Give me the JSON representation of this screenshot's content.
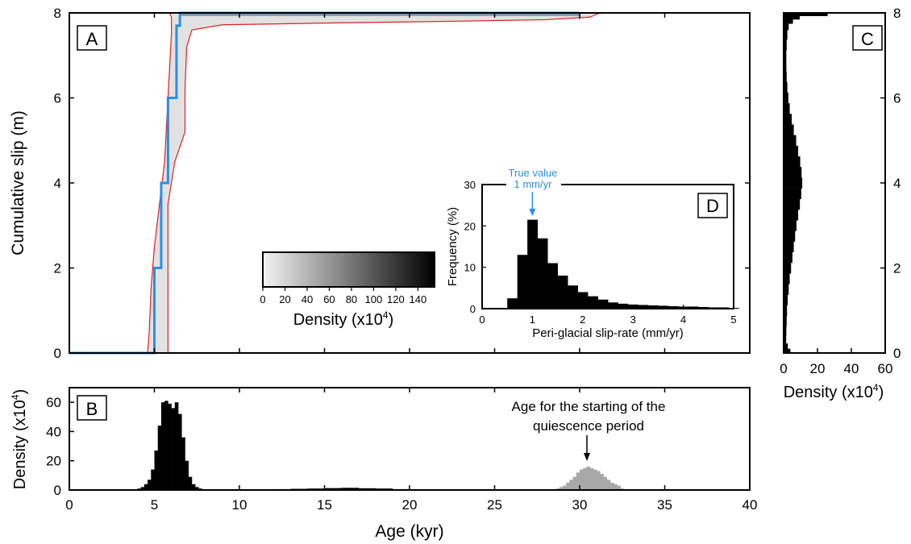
{
  "panels": {
    "A": {
      "letter": "A",
      "ylabel": "Cumulative slip (m)",
      "yticks": [
        "0",
        "2",
        "4",
        "6",
        "8"
      ],
      "colorbar": {
        "label": "Density (x10",
        "label_exp": "4",
        "label_close": ")",
        "ticks": [
          "0",
          "20",
          "40",
          "60",
          "80",
          "100",
          "120",
          "140"
        ],
        "range": [
          0,
          155
        ],
        "colors": [
          "#f4f4f4",
          "#000000"
        ]
      }
    },
    "B": {
      "letter": "B",
      "ylabel": "Density (x10",
      "ylabel_exp": "4",
      "ylabel_close": ")",
      "yticks": [
        "0",
        "20",
        "40",
        "60"
      ],
      "xlabel": "Age (kyr)",
      "xticks": [
        "0",
        "5",
        "10",
        "15",
        "20",
        "25",
        "30",
        "35",
        "40"
      ],
      "annotation_line1": "Age for the starting of the",
      "annotation_line2": "quiescence period"
    },
    "C": {
      "letter": "C",
      "yticks": [
        "0",
        "2",
        "4",
        "6",
        "8"
      ],
      "xticks": [
        "0",
        "20",
        "40",
        "60"
      ],
      "xlabel": "Density (x10",
      "xlabel_exp": "4",
      "xlabel_close": ")"
    },
    "D": {
      "letter": "D",
      "xlabel": "Peri-glacial slip-rate (mm/yr)",
      "ylabel": "Frequency (%)",
      "xticks": [
        "0",
        "1",
        "2",
        "3",
        "4",
        "5"
      ],
      "yticks": [
        "0",
        "10",
        "20",
        "30"
      ],
      "true_value_line1": "True value",
      "true_value_line2": "1 mm/yr"
    }
  },
  "colors": {
    "true_path": "#2b8fe6",
    "envelope": "#e02020",
    "bars": "#000000",
    "quiescence_bars": "#a8a8a8",
    "true_value_text": "#2b8fe6"
  },
  "chart_data": [
    {
      "panel": "A",
      "type": "line",
      "xlabel": "Age (kyr)",
      "ylabel": "Cumulative slip (m)",
      "xlim": [
        0,
        40
      ],
      "ylim": [
        0,
        8
      ],
      "series": [
        {
          "style": "step",
          "x": [
            0,
            5.0,
            5.0,
            5.4,
            5.4,
            5.8,
            5.8,
            6.3,
            6.3,
            6.5,
            6.5,
            30
          ],
          "y": [
            0,
            0,
            2,
            2,
            4,
            4,
            6,
            6,
            7.7,
            7.7,
            8,
            8
          ]
        },
        {
          "style": "envelope-left",
          "x": [
            4.6,
            4.7,
            4.8,
            5.0,
            5.3,
            5.6,
            5.8,
            6.0,
            6.0,
            5.9
          ],
          "y": [
            0,
            0.5,
            1.5,
            2.5,
            3.5,
            4.5,
            6.0,
            7.5,
            7.9,
            8.0
          ]
        },
        {
          "style": "envelope-right",
          "x": [
            5.8,
            5.8,
            5.8,
            6.2,
            6.8,
            6.8,
            6.9,
            7.2,
            9,
            15,
            22,
            28,
            30.6,
            31.2,
            30.6
          ],
          "y": [
            0,
            2.5,
            3.5,
            4.5,
            5.2,
            6.2,
            7.2,
            7.6,
            7.72,
            7.76,
            7.8,
            7.84,
            7.9,
            8.0,
            8.0
          ]
        }
      ]
    },
    {
      "panel": "B",
      "type": "bar",
      "xlabel": "Age (kyr)",
      "ylabel": "Density (x10^4)",
      "xlim": [
        0,
        40
      ],
      "ylim": [
        0,
        70
      ],
      "series": [
        {
          "x": [
            3.8,
            4.0,
            4.2,
            4.4,
            4.6,
            4.8,
            5.0,
            5.2,
            5.4,
            5.6,
            5.8,
            6.0,
            6.2,
            6.4,
            6.6,
            6.8,
            7.0,
            7.2,
            7.4,
            7.6,
            7.8
          ],
          "values": [
            0.5,
            1,
            2,
            4,
            7,
            14,
            27,
            44,
            60,
            61,
            59,
            56,
            60,
            52,
            36,
            20,
            9,
            4,
            2,
            1,
            0.5
          ]
        },
        {
          "x": [
            8,
            9,
            10,
            11,
            12,
            13,
            14,
            15,
            16,
            17,
            18,
            19,
            20
          ],
          "values": [
            0.4,
            0.4,
            0.5,
            0.5,
            0.6,
            0.8,
            1,
            1.3,
            1.5,
            1.2,
            1,
            0.6,
            0.3
          ]
        },
        {
          "name": "quiescence",
          "x": [
            28.6,
            28.8,
            29.0,
            29.2,
            29.4,
            29.6,
            29.8,
            30.0,
            30.2,
            30.4,
            30.6,
            30.8,
            31.0,
            31.2,
            31.4,
            31.6,
            31.8,
            32.0,
            32.2,
            32.4
          ],
          "values": [
            1,
            2,
            3,
            5,
            7,
            9,
            12,
            14,
            15,
            16,
            15,
            14,
            13,
            11,
            9,
            7,
            5,
            4,
            3,
            1
          ]
        }
      ]
    },
    {
      "panel": "C",
      "type": "bar",
      "orientation": "horizontal",
      "xlabel": "Density (x10^4)",
      "ylabel": "Cumulative slip (m)",
      "xlim": [
        0,
        60
      ],
      "ylim": [
        0,
        8
      ],
      "y": [
        0.05,
        0.15,
        0.3,
        0.5,
        0.75,
        1.0,
        1.25,
        1.5,
        1.75,
        2.0,
        2.25,
        2.5,
        2.75,
        3.0,
        3.25,
        3.5,
        3.75,
        4.0,
        4.25,
        4.5,
        4.75,
        5.0,
        5.25,
        5.5,
        5.75,
        6.0,
        6.25,
        6.5,
        6.75,
        7.0,
        7.25,
        7.5,
        7.7,
        7.8,
        7.9,
        7.96
      ],
      "values": [
        4,
        2.5,
        1.5,
        1.6,
        1.8,
        2.0,
        2.4,
        3.0,
        3.6,
        4.4,
        5.2,
        6.0,
        6.8,
        7.6,
        8.6,
        9.6,
        10.4,
        11.0,
        10.6,
        9.8,
        8.6,
        7.4,
        6.0,
        4.8,
        3.6,
        2.8,
        2.2,
        1.8,
        1.6,
        1.6,
        1.8,
        2.2,
        3.0,
        5.5,
        9.5,
        26
      ]
    },
    {
      "panel": "D",
      "type": "bar",
      "xlabel": "Peri-glacial slip-rate (mm/yr)",
      "ylabel": "Frequency (%)",
      "xlim": [
        0,
        5
      ],
      "ylim": [
        0,
        30
      ],
      "bin_width": 0.2,
      "x": [
        0.5,
        0.7,
        0.9,
        1.1,
        1.3,
        1.5,
        1.7,
        1.9,
        2.1,
        2.3,
        2.5,
        2.7,
        2.9,
        3.1,
        3.3,
        3.5,
        3.7,
        3.9,
        4.1,
        4.3,
        4.5,
        4.7,
        4.9
      ],
      "values": [
        2.5,
        13,
        21.5,
        17,
        11,
        8,
        5.6,
        4,
        3,
        2.2,
        1.5,
        1.2,
        1.0,
        0.9,
        0.8,
        0.7,
        0.6,
        0.5,
        0.5,
        0.4,
        0.3,
        0.3,
        0.2
      ],
      "annotation_x": 1.0
    }
  ]
}
